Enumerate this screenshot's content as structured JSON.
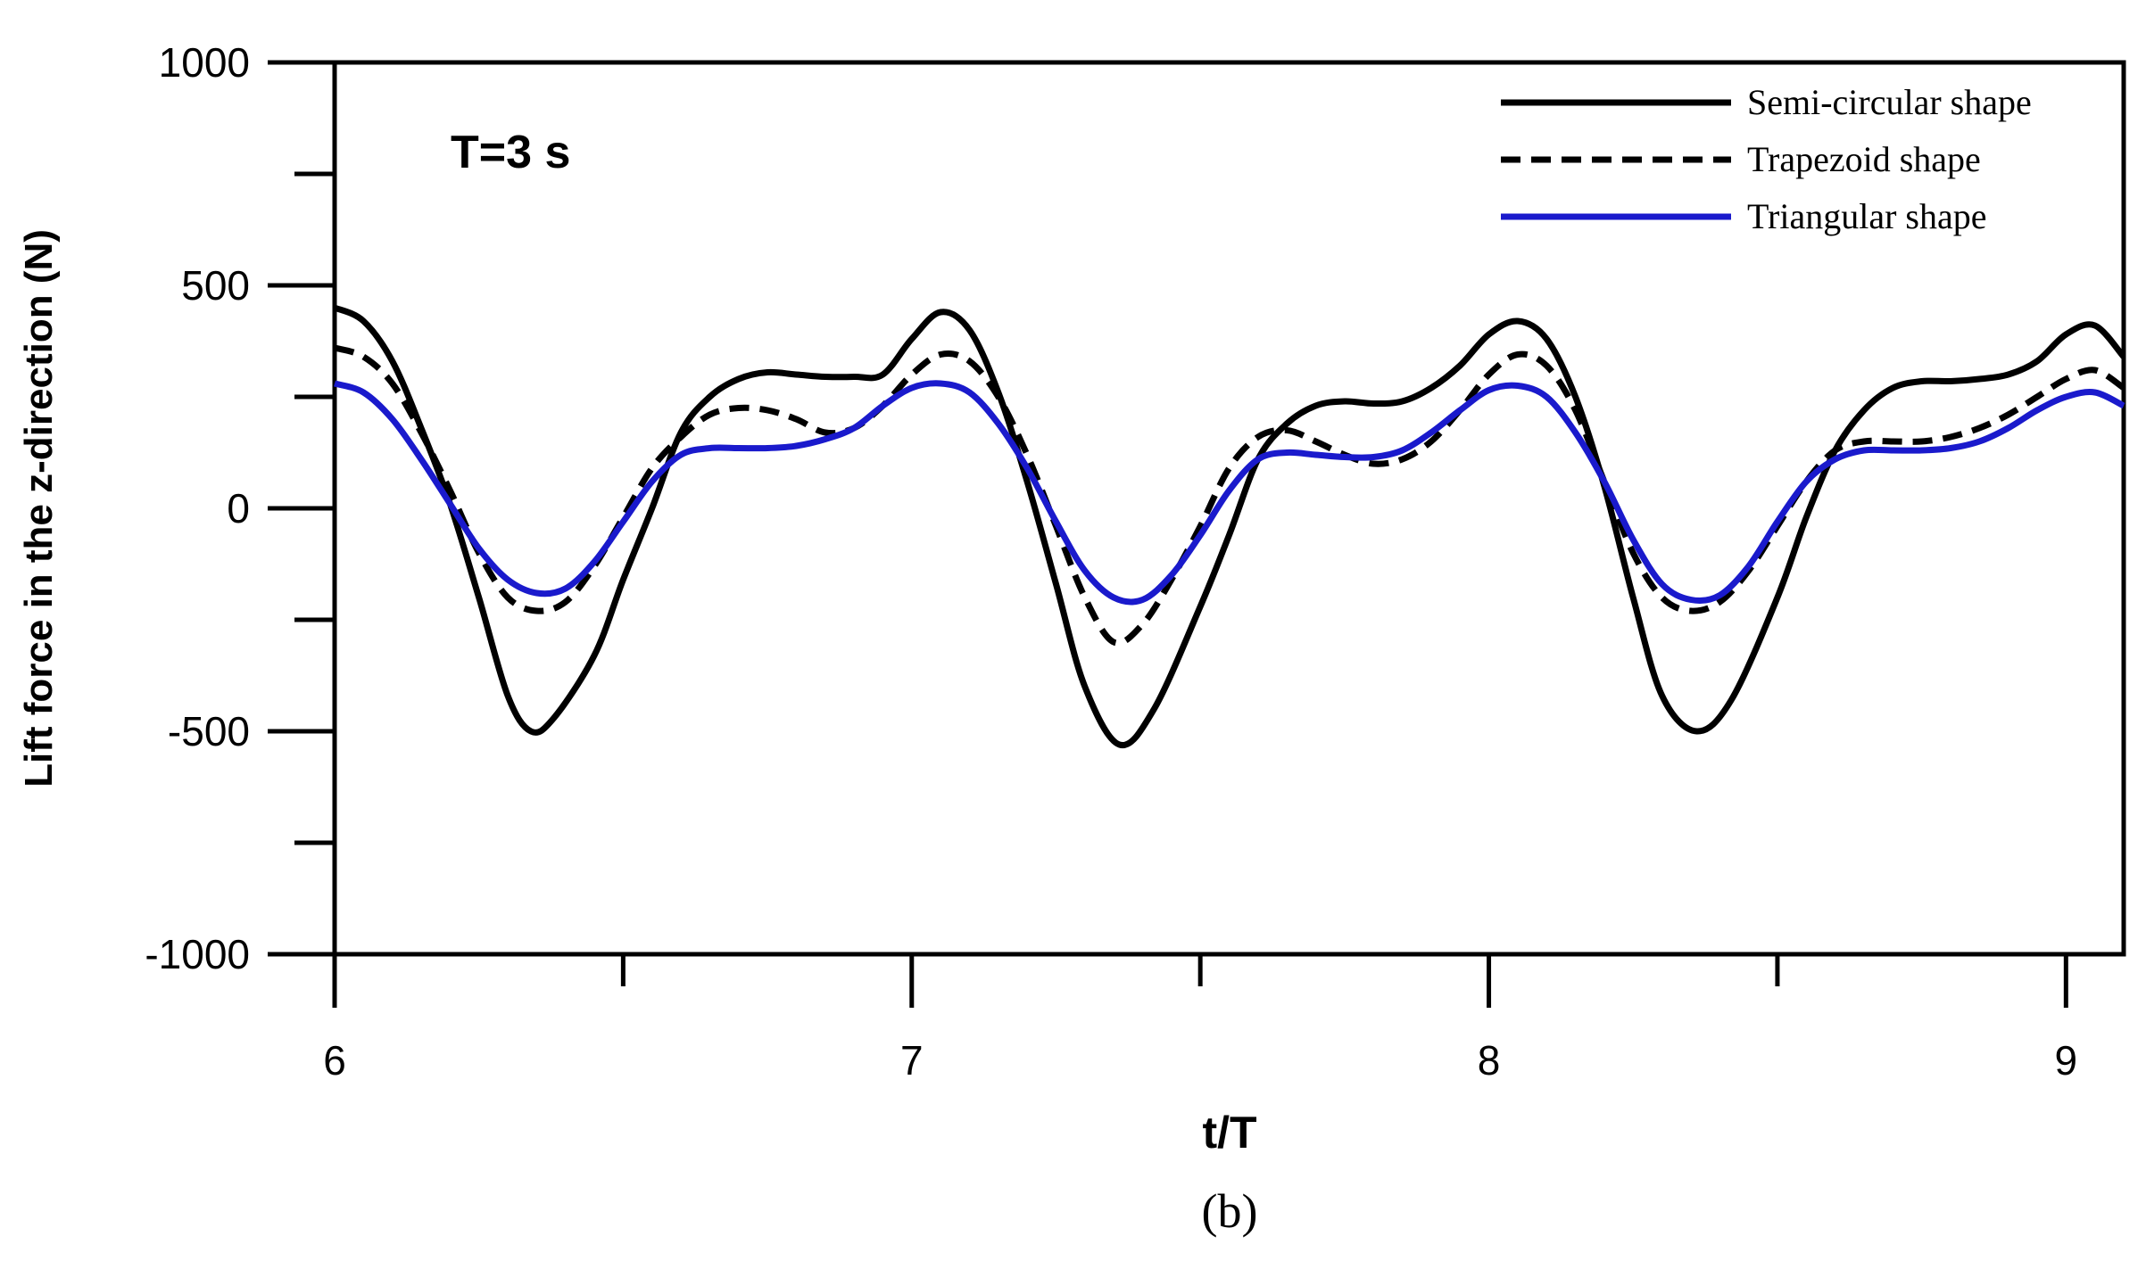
{
  "chart_data": {
    "type": "line",
    "title": "",
    "annotation": "T=3 s",
    "xlabel": "t/T",
    "ylabel": "Lift force in the z-direction (N)",
    "caption": "(b)",
    "xlim": [
      6,
      9.1
    ],
    "ylim": [
      -1000,
      1000
    ],
    "x_major_ticks": [
      6,
      7,
      8,
      9
    ],
    "x_tick_labels": [
      "6",
      "7",
      "8",
      "9"
    ],
    "x_minor_ticks": [
      6.5,
      7.5,
      8.5
    ],
    "y_major_ticks": [
      -1000,
      -500,
      0,
      500,
      1000
    ],
    "y_tick_labels": [
      "-1000",
      "-500",
      "0",
      "500",
      "1000"
    ],
    "y_minor_ticks": [
      -750,
      -250,
      250,
      750
    ],
    "grid": false,
    "legend_position": "top-right",
    "series": [
      {
        "name": "Semi-circular shape",
        "color": "#000000",
        "dash": "solid",
        "points": [
          [
            6.0,
            450
          ],
          [
            6.05,
            420
          ],
          [
            6.1,
            330
          ],
          [
            6.15,
            180
          ],
          [
            6.2,
            10
          ],
          [
            6.25,
            -200
          ],
          [
            6.3,
            -420
          ],
          [
            6.34,
            -500
          ],
          [
            6.38,
            -470
          ],
          [
            6.45,
            -330
          ],
          [
            6.5,
            -160
          ],
          [
            6.55,
            0
          ],
          [
            6.6,
            170
          ],
          [
            6.65,
            250
          ],
          [
            6.7,
            290
          ],
          [
            6.75,
            305
          ],
          [
            6.8,
            300
          ],
          [
            6.85,
            295
          ],
          [
            6.9,
            295
          ],
          [
            6.95,
            300
          ],
          [
            7.0,
            380
          ],
          [
            7.05,
            440
          ],
          [
            7.1,
            400
          ],
          [
            7.15,
            260
          ],
          [
            7.2,
            60
          ],
          [
            7.25,
            -170
          ],
          [
            7.3,
            -400
          ],
          [
            7.36,
            -530
          ],
          [
            7.42,
            -450
          ],
          [
            7.5,
            -220
          ],
          [
            7.55,
            -60
          ],
          [
            7.6,
            110
          ],
          [
            7.65,
            190
          ],
          [
            7.7,
            230
          ],
          [
            7.75,
            240
          ],
          [
            7.8,
            235
          ],
          [
            7.85,
            240
          ],
          [
            7.9,
            270
          ],
          [
            7.95,
            320
          ],
          [
            8.0,
            390
          ],
          [
            8.05,
            420
          ],
          [
            8.1,
            380
          ],
          [
            8.15,
            250
          ],
          [
            8.2,
            50
          ],
          [
            8.25,
            -200
          ],
          [
            8.3,
            -420
          ],
          [
            8.36,
            -500
          ],
          [
            8.42,
            -430
          ],
          [
            8.5,
            -200
          ],
          [
            8.55,
            -20
          ],
          [
            8.6,
            130
          ],
          [
            8.65,
            220
          ],
          [
            8.7,
            270
          ],
          [
            8.75,
            285
          ],
          [
            8.8,
            285
          ],
          [
            8.85,
            290
          ],
          [
            8.9,
            300
          ],
          [
            8.95,
            330
          ],
          [
            9.0,
            390
          ],
          [
            9.05,
            410
          ],
          [
            9.1,
            340
          ]
        ]
      },
      {
        "name": "Trapezoid shape",
        "color": "#000000",
        "dash": "dashed",
        "points": [
          [
            6.0,
            360
          ],
          [
            6.05,
            340
          ],
          [
            6.1,
            280
          ],
          [
            6.15,
            170
          ],
          [
            6.2,
            40
          ],
          [
            6.25,
            -100
          ],
          [
            6.3,
            -200
          ],
          [
            6.35,
            -230
          ],
          [
            6.4,
            -210
          ],
          [
            6.45,
            -130
          ],
          [
            6.5,
            -20
          ],
          [
            6.55,
            90
          ],
          [
            6.6,
            160
          ],
          [
            6.65,
            210
          ],
          [
            6.7,
            225
          ],
          [
            6.75,
            220
          ],
          [
            6.8,
            200
          ],
          [
            6.85,
            170
          ],
          [
            6.9,
            180
          ],
          [
            6.95,
            230
          ],
          [
            7.0,
            300
          ],
          [
            7.05,
            345
          ],
          [
            7.1,
            330
          ],
          [
            7.15,
            250
          ],
          [
            7.2,
            120
          ],
          [
            7.25,
            -40
          ],
          [
            7.3,
            -200
          ],
          [
            7.35,
            -300
          ],
          [
            7.4,
            -260
          ],
          [
            7.45,
            -160
          ],
          [
            7.5,
            -40
          ],
          [
            7.55,
            90
          ],
          [
            7.6,
            160
          ],
          [
            7.65,
            175
          ],
          [
            7.7,
            150
          ],
          [
            7.75,
            120
          ],
          [
            7.8,
            100
          ],
          [
            7.85,
            110
          ],
          [
            7.9,
            150
          ],
          [
            7.95,
            220
          ],
          [
            8.0,
            300
          ],
          [
            8.05,
            345
          ],
          [
            8.1,
            320
          ],
          [
            8.15,
            220
          ],
          [
            8.2,
            60
          ],
          [
            8.25,
            -100
          ],
          [
            8.3,
            -200
          ],
          [
            8.35,
            -230
          ],
          [
            8.4,
            -210
          ],
          [
            8.45,
            -140
          ],
          [
            8.5,
            -40
          ],
          [
            8.55,
            60
          ],
          [
            8.6,
            130
          ],
          [
            8.65,
            150
          ],
          [
            8.7,
            150
          ],
          [
            8.75,
            150
          ],
          [
            8.8,
            160
          ],
          [
            8.85,
            180
          ],
          [
            8.9,
            210
          ],
          [
            8.95,
            250
          ],
          [
            9.0,
            290
          ],
          [
            9.05,
            310
          ],
          [
            9.1,
            270
          ]
        ]
      },
      {
        "name": "Triangular shape",
        "color": "#1a1acc",
        "dash": "solid",
        "points": [
          [
            6.0,
            280
          ],
          [
            6.05,
            260
          ],
          [
            6.1,
            200
          ],
          [
            6.15,
            110
          ],
          [
            6.2,
            10
          ],
          [
            6.25,
            -90
          ],
          [
            6.3,
            -160
          ],
          [
            6.35,
            -190
          ],
          [
            6.4,
            -180
          ],
          [
            6.45,
            -120
          ],
          [
            6.5,
            -30
          ],
          [
            6.55,
            60
          ],
          [
            6.6,
            120
          ],
          [
            6.65,
            135
          ],
          [
            6.7,
            135
          ],
          [
            6.75,
            135
          ],
          [
            6.8,
            140
          ],
          [
            6.85,
            155
          ],
          [
            6.9,
            180
          ],
          [
            6.95,
            230
          ],
          [
            7.0,
            270
          ],
          [
            7.05,
            280
          ],
          [
            7.1,
            260
          ],
          [
            7.15,
            190
          ],
          [
            7.2,
            90
          ],
          [
            7.25,
            -30
          ],
          [
            7.3,
            -140
          ],
          [
            7.35,
            -200
          ],
          [
            7.4,
            -205
          ],
          [
            7.45,
            -150
          ],
          [
            7.5,
            -60
          ],
          [
            7.55,
            40
          ],
          [
            7.6,
            110
          ],
          [
            7.65,
            125
          ],
          [
            7.7,
            120
          ],
          [
            7.75,
            115
          ],
          [
            7.8,
            115
          ],
          [
            7.85,
            130
          ],
          [
            7.9,
            170
          ],
          [
            7.95,
            220
          ],
          [
            8.0,
            265
          ],
          [
            8.05,
            275
          ],
          [
            8.1,
            250
          ],
          [
            8.15,
            170
          ],
          [
            8.2,
            60
          ],
          [
            8.25,
            -70
          ],
          [
            8.3,
            -170
          ],
          [
            8.35,
            -205
          ],
          [
            8.4,
            -195
          ],
          [
            8.45,
            -130
          ],
          [
            8.5,
            -30
          ],
          [
            8.55,
            60
          ],
          [
            8.6,
            110
          ],
          [
            8.65,
            130
          ],
          [
            8.7,
            130
          ],
          [
            8.75,
            130
          ],
          [
            8.8,
            135
          ],
          [
            8.85,
            150
          ],
          [
            8.9,
            180
          ],
          [
            8.95,
            220
          ],
          [
            9.0,
            250
          ],
          [
            9.05,
            260
          ],
          [
            9.1,
            230
          ]
        ]
      }
    ]
  }
}
